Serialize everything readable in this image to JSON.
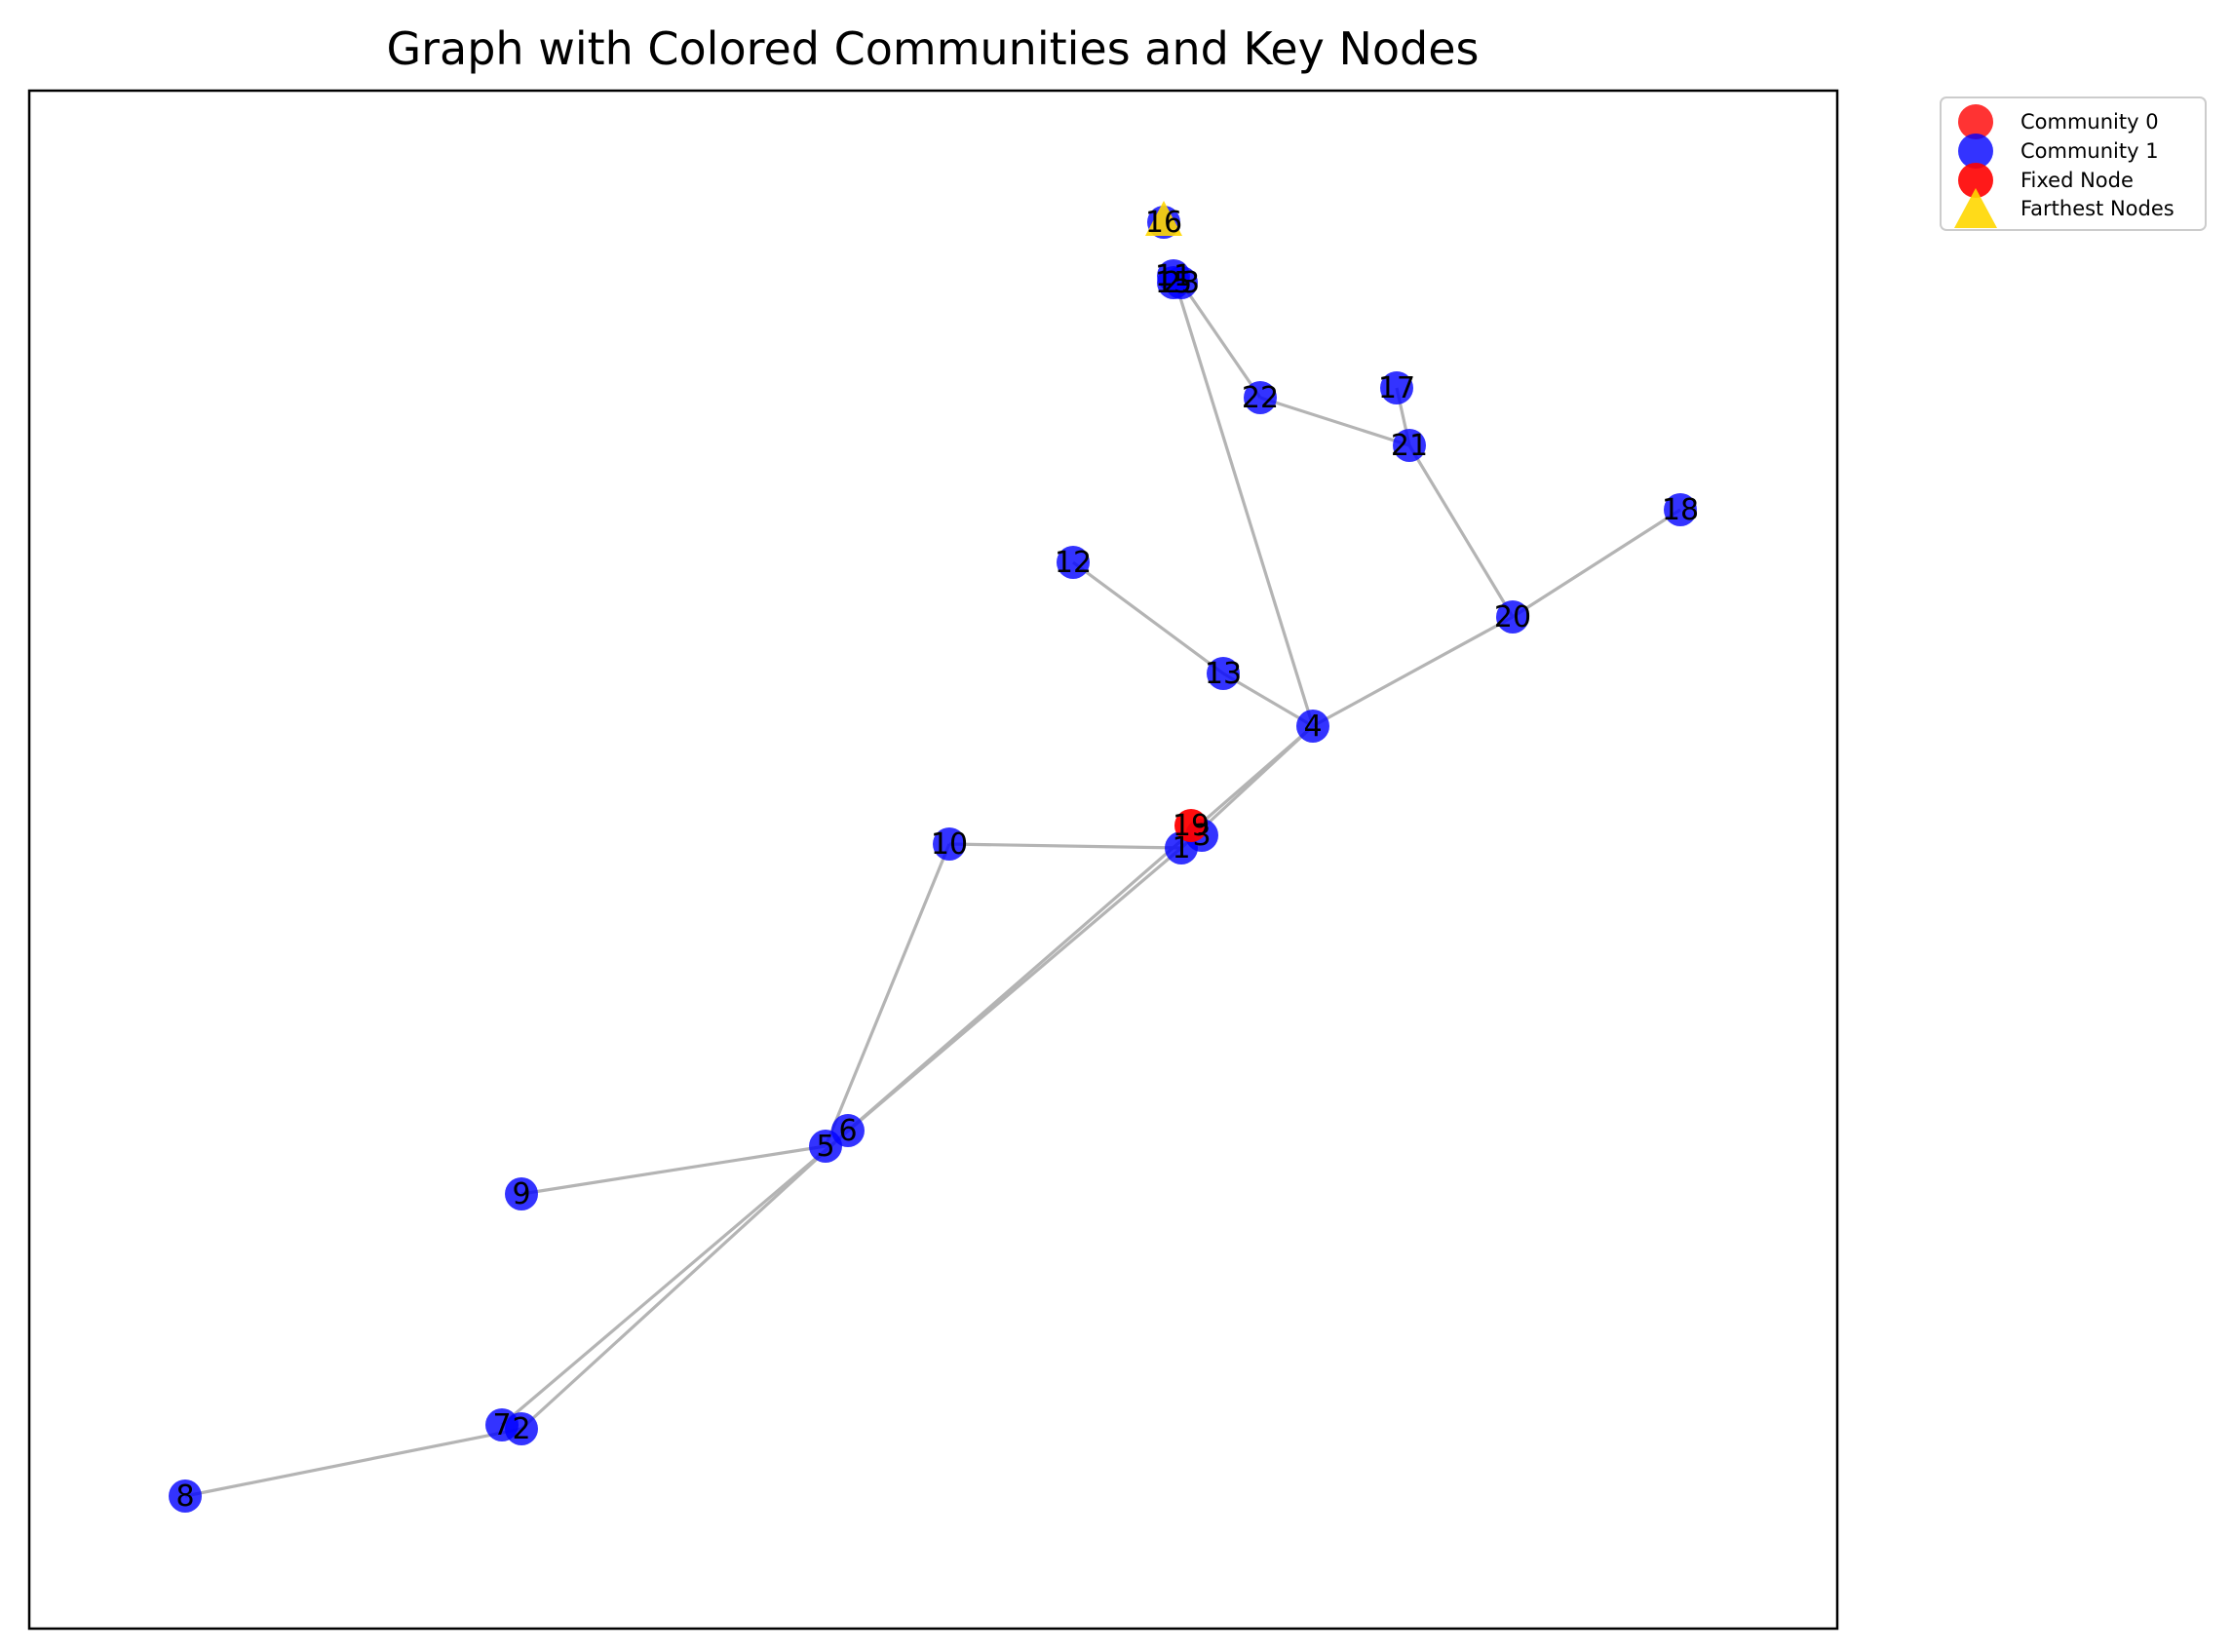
{
  "title": "Graph with Colored Communities and Key Nodes",
  "colors": {
    "community_0": "#ff0000",
    "community_1": "#0000ff",
    "fixed_node": "#ff0000",
    "farthest_nodes": "#ffd700",
    "edge": "#b4b4b4"
  },
  "legend": {
    "community_0": "Community 0",
    "community_1": "Community 1",
    "fixed_node": "Fixed Node",
    "farthest_nodes": "Farthest Nodes"
  },
  "node_labels": [
    "1",
    "2",
    "3",
    "4",
    "5",
    "6",
    "7",
    "8",
    "9",
    "10",
    "11",
    "12",
    "13",
    "15",
    "16",
    "17",
    "18",
    "19",
    "20",
    "21",
    "22",
    "23"
  ],
  "edges": [
    [
      "10",
      "1"
    ],
    [
      "10",
      "5"
    ],
    [
      "1",
      "4"
    ],
    [
      "1",
      "7"
    ],
    [
      "6",
      "2"
    ],
    [
      "6",
      "4"
    ],
    [
      "5",
      "9"
    ],
    [
      "2",
      "8"
    ],
    [
      "4",
      "13"
    ],
    [
      "13",
      "12"
    ],
    [
      "4",
      "20"
    ],
    [
      "20",
      "18"
    ],
    [
      "20",
      "21"
    ],
    [
      "21",
      "17"
    ],
    [
      "21",
      "22"
    ],
    [
      "22",
      "23"
    ],
    [
      "4",
      "11"
    ]
  ],
  "fixed_node": "19",
  "farthest_nodes": [
    "16"
  ]
}
